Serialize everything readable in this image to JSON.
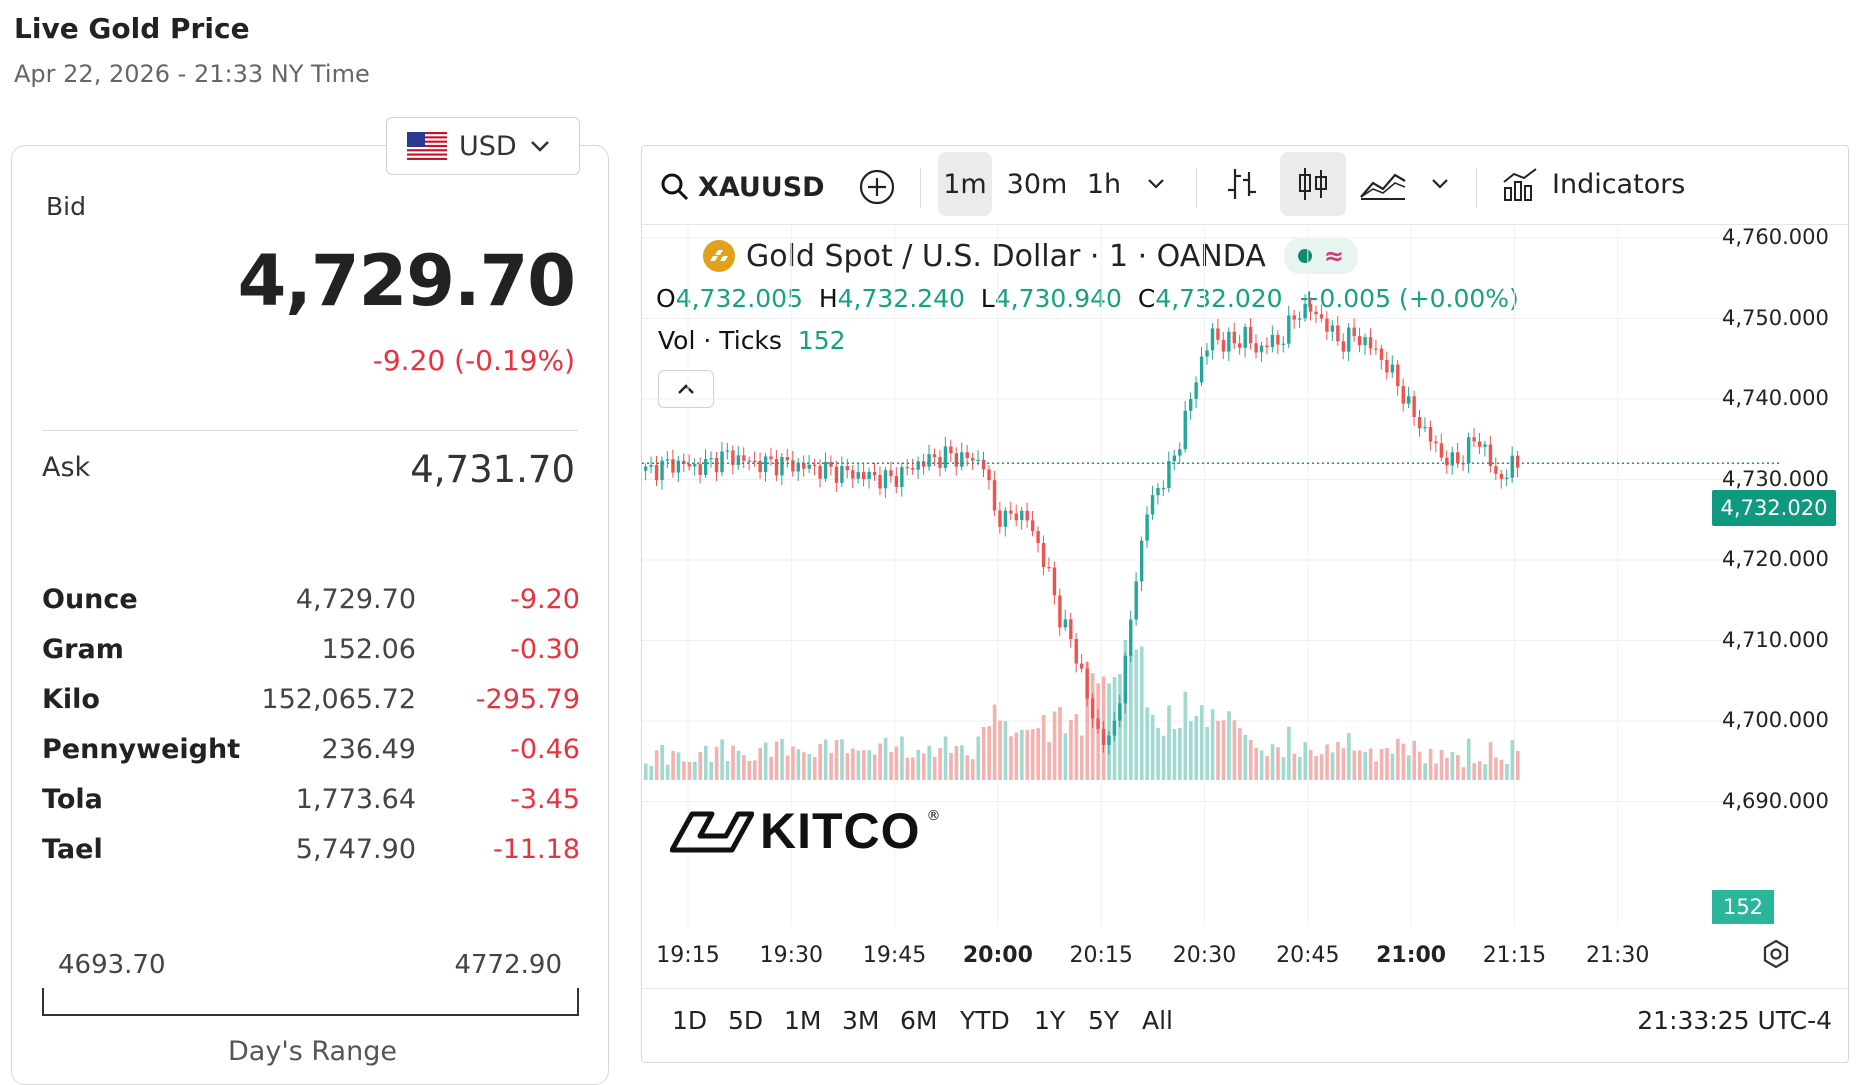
{
  "header": {
    "title": "Live Gold Price",
    "subtitle": "Apr 22, 2026 - 21:33 NY Time"
  },
  "currency": {
    "selected": "USD"
  },
  "bid": {
    "label": "Bid",
    "value": "4,729.70",
    "change": "-9.20 (-0.19%)"
  },
  "ask": {
    "label": "Ask",
    "value": "4,731.70"
  },
  "units": [
    {
      "name": "Ounce",
      "price": "4,729.70",
      "change": "-9.20"
    },
    {
      "name": "Gram",
      "price": "152.06",
      "change": "-0.30"
    },
    {
      "name": "Kilo",
      "price": "152,065.72",
      "change": "-295.79"
    },
    {
      "name": "Pennyweight",
      "price": "236.49",
      "change": "-0.46"
    },
    {
      "name": "Tola",
      "price": "1,773.64",
      "change": "-3.45"
    },
    {
      "name": "Tael",
      "price": "5,747.90",
      "change": "-11.18"
    }
  ],
  "day_range": {
    "low": "4693.70",
    "high": "4772.90",
    "label": "Day's Range"
  },
  "toolbar": {
    "symbol": "XAUUSD",
    "intervals": [
      "1m",
      "30m",
      "1h"
    ],
    "indicators_label": "Indicators"
  },
  "legend": {
    "title": "Gold Spot / U.S. Dollar · 1 · OANDA",
    "open_label": "O",
    "open": "4,732.005",
    "high_label": "H",
    "high": "4,732.240",
    "low_label": "L",
    "low": "4,730.940",
    "close_label": "C",
    "close": "4,732.020",
    "change": "+0.005 (+0.00%)",
    "vol_label": "Vol · Ticks",
    "vol_value": "152"
  },
  "price_tag": "4,732.020",
  "volume_tag": "152",
  "brand": {
    "name": "KITCO",
    "mark": "®"
  },
  "range_tabs": [
    "1D",
    "5D",
    "1M",
    "3M",
    "6M",
    "YTD",
    "1Y",
    "5Y",
    "All"
  ],
  "clock": "21:33:25 UTC-4",
  "colors": {
    "up": "#26a69a",
    "down": "#ef5350",
    "negative_text": "#e5333f",
    "accent": "#0f9a7f"
  },
  "chart_data": {
    "type": "candlestick",
    "interval": "1m",
    "y_ticks": [
      "4,760.000",
      "4,750.000",
      "4,740.000",
      "4,730.000",
      "4,720.000",
      "4,710.000",
      "4,700.000",
      "4,690.000"
    ],
    "x_ticks": [
      {
        "label": "19:15",
        "bold": false
      },
      {
        "label": "19:30",
        "bold": false
      },
      {
        "label": "19:45",
        "bold": false
      },
      {
        "label": "20:00",
        "bold": true
      },
      {
        "label": "20:15",
        "bold": false
      },
      {
        "label": "20:30",
        "bold": false
      },
      {
        "label": "20:45",
        "bold": false
      },
      {
        "label": "21:00",
        "bold": true
      },
      {
        "label": "21:15",
        "bold": false
      },
      {
        "label": "21:30",
        "bold": false
      }
    ],
    "ylim": [
      4690,
      4760
    ],
    "last_price": 4732.02,
    "price_path": [
      [
        0,
        4731
      ],
      [
        5,
        4732
      ],
      [
        10,
        4731.5
      ],
      [
        15,
        4733
      ],
      [
        20,
        4732
      ],
      [
        25,
        4732
      ],
      [
        30,
        4731.5
      ],
      [
        35,
        4731
      ],
      [
        40,
        4730.5
      ],
      [
        45,
        4730
      ],
      [
        50,
        4732
      ],
      [
        55,
        4733
      ],
      [
        60,
        4732.5
      ],
      [
        62,
        4732
      ],
      [
        64,
        4726
      ],
      [
        66,
        4725
      ],
      [
        68,
        4726
      ],
      [
        70,
        4725
      ],
      [
        72,
        4722
      ],
      [
        74,
        4718
      ],
      [
        76,
        4713
      ],
      [
        78,
        4710
      ],
      [
        80,
        4706
      ],
      [
        82,
        4700
      ],
      [
        84,
        4698
      ],
      [
        85,
        4697
      ],
      [
        86,
        4700
      ],
      [
        88,
        4707
      ],
      [
        90,
        4718
      ],
      [
        92,
        4726
      ],
      [
        94,
        4729
      ],
      [
        96,
        4731
      ],
      [
        98,
        4735
      ],
      [
        100,
        4740
      ],
      [
        102,
        4745
      ],
      [
        104,
        4748
      ],
      [
        106,
        4747
      ],
      [
        108,
        4747
      ],
      [
        110,
        4748
      ],
      [
        112,
        4746
      ],
      [
        114,
        4747
      ],
      [
        116,
        4747
      ],
      [
        118,
        4749
      ],
      [
        120,
        4751
      ],
      [
        122,
        4751
      ],
      [
        124,
        4750
      ],
      [
        126,
        4748
      ],
      [
        128,
        4747
      ],
      [
        130,
        4748
      ],
      [
        132,
        4747
      ],
      [
        134,
        4746
      ],
      [
        136,
        4744
      ],
      [
        138,
        4742
      ],
      [
        140,
        4739
      ],
      [
        142,
        4737
      ],
      [
        144,
        4735
      ],
      [
        146,
        4733
      ],
      [
        148,
        4732
      ],
      [
        150,
        4733
      ],
      [
        152,
        4735
      ],
      [
        154,
        4734
      ],
      [
        156,
        4730
      ],
      [
        158,
        4731
      ],
      [
        160,
        4732
      ]
    ],
    "volume_note": "tick volume histogram along bottom"
  }
}
